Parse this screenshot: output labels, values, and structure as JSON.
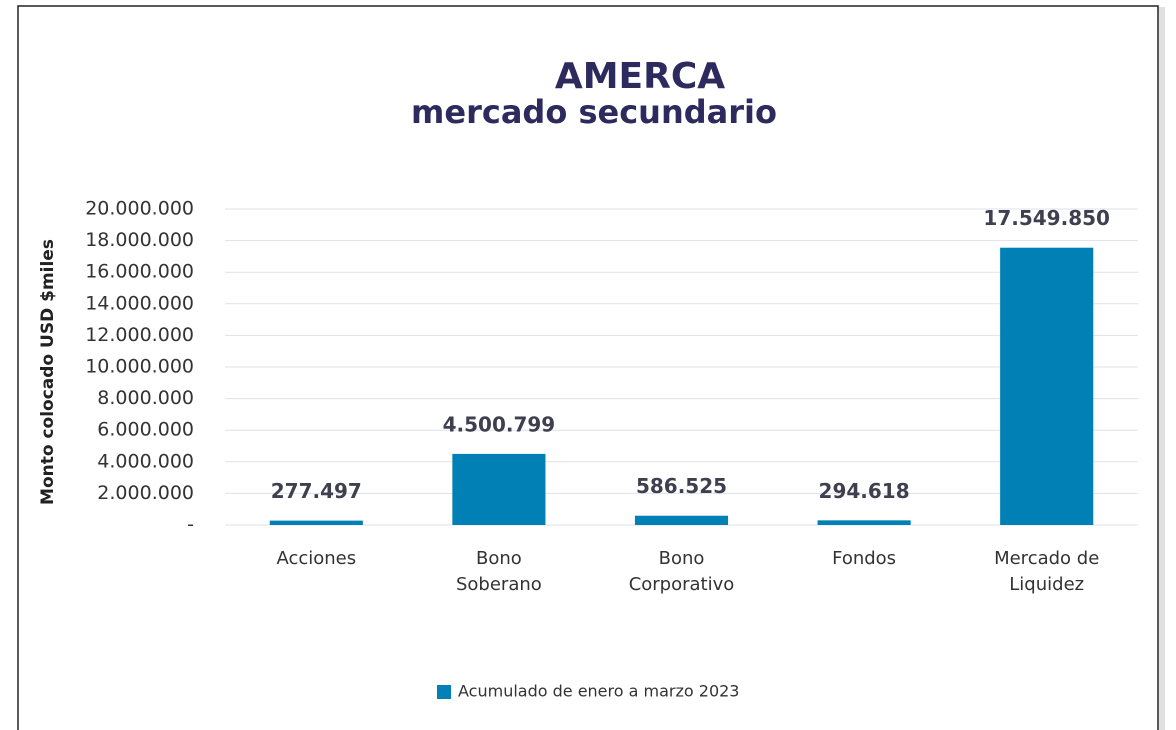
{
  "chart_data": {
    "type": "bar",
    "title": "AMERCA",
    "subtitle": "mercado secundario",
    "y_axis_label": "Monto colocado USD $miles",
    "categories": [
      "Acciones",
      "Bono Soberano",
      "Bono Corporativo",
      "Fondos",
      "Mercado de Liquidez"
    ],
    "series": [
      {
        "name": "Acumulado de enero a marzo 2023",
        "color": "#0080b4",
        "values": [
          277497,
          4500799,
          586525,
          294618,
          17549850
        ],
        "value_labels": [
          "277.497",
          "4.500.799",
          "586.525",
          "294.618",
          "17.549.850"
        ]
      }
    ],
    "ylim": [
      0,
      20000000
    ],
    "yticks": [
      {
        "value": 0,
        "label": "-"
      },
      {
        "value": 2000000,
        "label": "2.000.000"
      },
      {
        "value": 4000000,
        "label": "4.000.000"
      },
      {
        "value": 6000000,
        "label": "6.000.000"
      },
      {
        "value": 8000000,
        "label": "8.000.000"
      },
      {
        "value": 10000000,
        "label": "10.000.000"
      },
      {
        "value": 12000000,
        "label": "12.000.000"
      },
      {
        "value": 14000000,
        "label": "14.000.000"
      },
      {
        "value": 16000000,
        "label": "16.000.000"
      },
      {
        "value": 18000000,
        "label": "18.000.000"
      },
      {
        "value": 20000000,
        "label": "20.000.000"
      }
    ],
    "grid": true,
    "legend": "bottom"
  }
}
